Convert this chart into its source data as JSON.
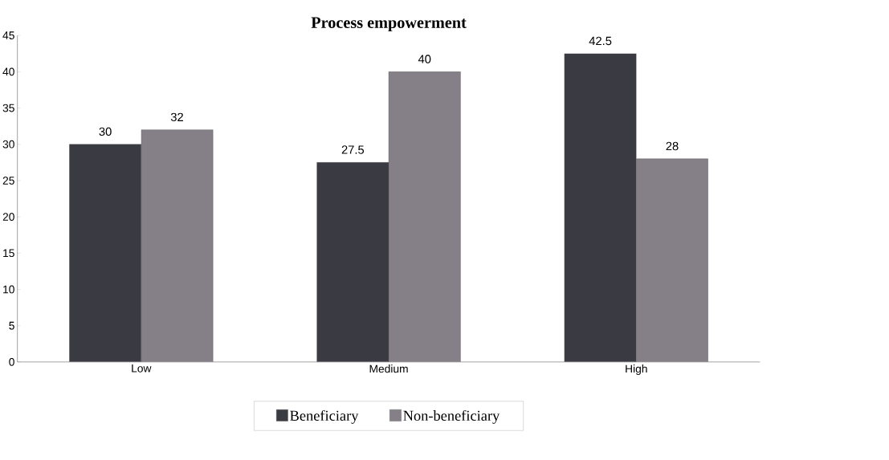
{
  "chart_data": {
    "type": "bar",
    "title": "Process empowerment",
    "categories": [
      "Low",
      "Medium",
      "High"
    ],
    "series": [
      {
        "name": "Beneficiary",
        "color": "#3a3a42",
        "values": [
          30,
          27.5,
          42.5
        ]
      },
      {
        "name": "Non-beneficiary",
        "color": "#858087",
        "values": [
          32,
          40,
          28
        ]
      }
    ],
    "ylim": [
      0,
      45
    ],
    "yticks": [
      0,
      5,
      10,
      15,
      20,
      25,
      30,
      35,
      40,
      45
    ],
    "data_labels": true,
    "legend": "bottom",
    "grid": false
  }
}
